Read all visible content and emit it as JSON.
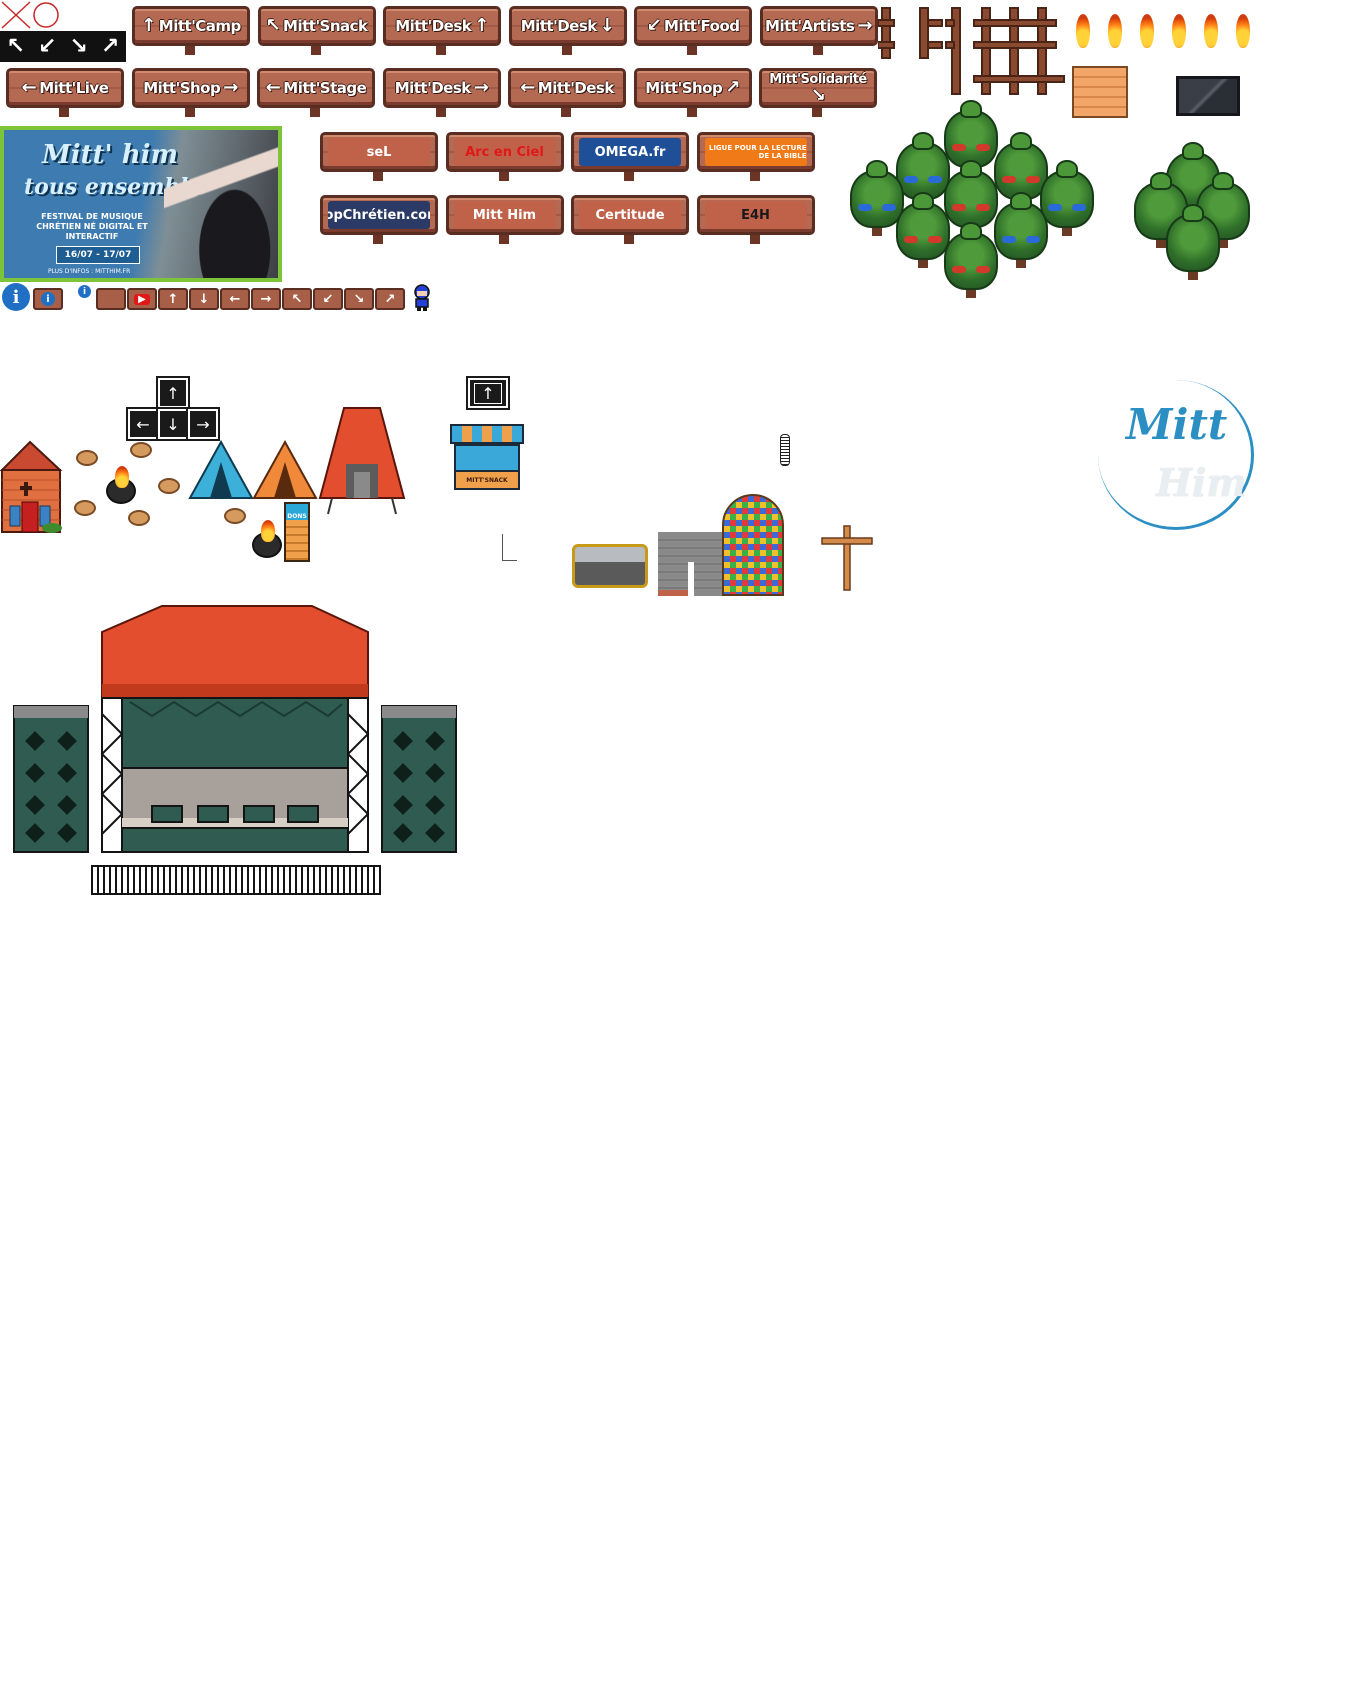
{
  "signs_row1": [
    {
      "label": "Mitt'Camp",
      "arrow": "↑",
      "arrow_side": "left"
    },
    {
      "label": "Mitt'Snack",
      "arrow": "↖",
      "arrow_side": "left"
    },
    {
      "label": "Mitt'Desk",
      "arrow": "↑",
      "arrow_side": "right"
    },
    {
      "label": "Mitt'Desk",
      "arrow": "↓",
      "arrow_side": "right"
    },
    {
      "label": "Mitt'Food",
      "arrow": "↙",
      "arrow_side": "left"
    },
    {
      "label": "Mitt'Artists",
      "arrow": "→",
      "arrow_side": "right"
    }
  ],
  "signs_row2": [
    {
      "label": "Mitt'Live",
      "arrow": "←",
      "arrow_side": "left"
    },
    {
      "label": "Mitt'Shop",
      "arrow": "→",
      "arrow_side": "right"
    },
    {
      "label": "Mitt'Stage",
      "arrow": "←",
      "arrow_side": "left"
    },
    {
      "label": "Mitt'Desk",
      "arrow": "→",
      "arrow_side": "right"
    },
    {
      "label": "Mitt'Desk",
      "arrow": "←",
      "arrow_side": "left"
    },
    {
      "label": "Mitt'Shop",
      "arrow": "↗",
      "arrow_side": "right"
    },
    {
      "label": "Mitt'Solidarité",
      "arrow": "↘",
      "arrow_side": "below"
    }
  ],
  "sponsors_row1": [
    {
      "label": "seL",
      "bg": "#c0614a",
      "fg": "#ffffff"
    },
    {
      "label": "Arc en Ciel",
      "bg": "#c0614a",
      "fg": "#e01818"
    },
    {
      "label": "OMEGA.fr",
      "bg": "#1f4f96",
      "fg": "#ffffff"
    },
    {
      "label": "LIGUE POUR LA LECTURE DE LA BIBLE",
      "bg": "#f07a18",
      "fg": "#ffffff"
    }
  ],
  "sponsors_row2": [
    {
      "label": "TopChrétien.com",
      "bg": "#2b3b66",
      "fg": "#ffffff"
    },
    {
      "label": "Mitt Him",
      "bg": "#c0614a",
      "fg": "#ffffff"
    },
    {
      "label": "Certitude",
      "bg": "#c0614a",
      "fg": "#ffffff"
    },
    {
      "label": "E4H",
      "bg": "#c0614a",
      "fg": "#1a1a1a"
    }
  ],
  "banner": {
    "title_line1": "Mitt' him",
    "title_line2": "tous ensemble",
    "subtitle": "FESTIVAL DE MUSIQUE CHRÉTIEN NÉ DIGITAL ET INTERACTIF",
    "dates": "16/07 - 17/07",
    "footer": "PLUS D'INFOS : MITTHIM.FR",
    "border_color": "#7cc43a",
    "bg_color": "#3b6fa0"
  },
  "corner_arrows": [
    "↖",
    "↙",
    "↘",
    "↗"
  ],
  "mini_boards": [
    "▶",
    "↑",
    "↓",
    "←",
    "→",
    "↖",
    "↙",
    "↘",
    "↗"
  ],
  "keys": {
    "up": "↑",
    "left": "←",
    "down": "↓",
    "right": "→",
    "single": "↑"
  },
  "snack_stand": {
    "label": "MITT'SNACK"
  },
  "dons_box": {
    "label": "DONS"
  },
  "watermark_logo": {
    "line1": "Mitt",
    "line2": "Him",
    "color": "#2b8fc4"
  },
  "colors": {
    "wood": "#b46a52",
    "wood_dark": "#5a2d22",
    "tree": "#2f6f2a",
    "stage_roof": "#e24e2e",
    "stage_screen": "#2f5b50",
    "speaker": "#2f5b50",
    "info_blue": "#1f6fc4"
  }
}
